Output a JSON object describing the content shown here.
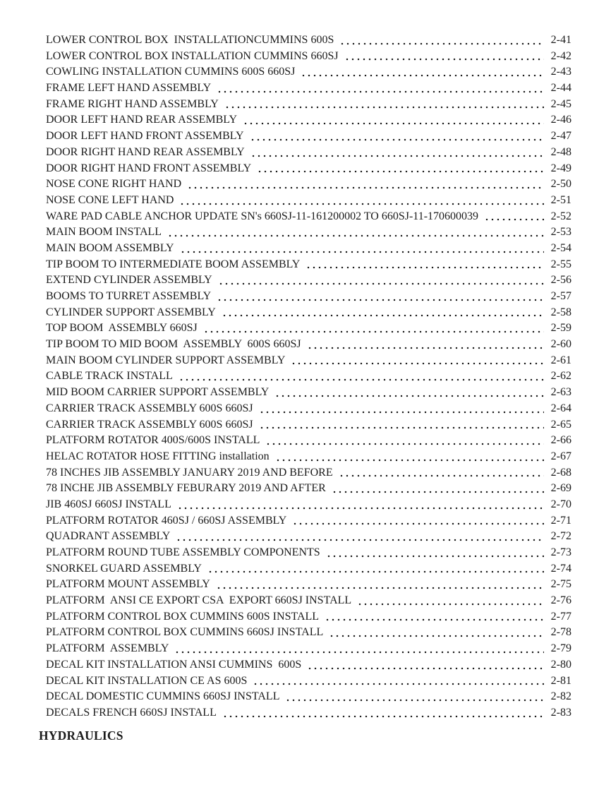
{
  "document": {
    "toc": {
      "entries": [
        {
          "title": "LOWER CONTROL BOX  INSTALLATIONCUMMINS 600S",
          "page": "2-41"
        },
        {
          "title": "LOWER CONTROL BOX INSTALLATION CUMMINS 660SJ",
          "page": "2-42"
        },
        {
          "title": "COWLING INSTALLATION CUMMINS 600S 660SJ",
          "page": "2-43"
        },
        {
          "title": "FRAME LEFT HAND ASSEMBLY",
          "page": "2-44"
        },
        {
          "title": "FRAME RIGHT HAND ASSEMBLY",
          "page": "2-45"
        },
        {
          "title": "DOOR LEFT HAND REAR ASSEMBLY",
          "page": "2-46"
        },
        {
          "title": "DOOR LEFT HAND FRONT ASSEMBLY",
          "page": "2-47"
        },
        {
          "title": "DOOR RIGHT HAND REAR ASSEMBLY",
          "page": "2-48"
        },
        {
          "title": "DOOR RIGHT HAND FRONT ASSEMBLY",
          "page": "2-49"
        },
        {
          "title": "NOSE CONE RIGHT HAND",
          "page": "2-50"
        },
        {
          "title": "NOSE CONE LEFT HAND",
          "page": "2-51"
        },
        {
          "title": "WARE PAD CABLE ANCHOR UPDATE SN's 660SJ-11-161200002 TO 660SJ-11-170600039",
          "page": "2-52"
        },
        {
          "title": "MAIN BOOM INSTALL",
          "page": "2-53"
        },
        {
          "title": "MAIN BOOM ASSEMBLY",
          "page": "2-54"
        },
        {
          "title": "TIP BOOM TO INTERMEDIATE BOOM ASSEMBLY",
          "page": "2-55"
        },
        {
          "title": "EXTEND CYLINDER ASSEMBLY",
          "page": "2-56"
        },
        {
          "title": "BOOMS TO TURRET ASSEMBLY",
          "page": "2-57"
        },
        {
          "title": "CYLINDER SUPPORT ASSEMBLY",
          "page": "2-58"
        },
        {
          "title": "TOP BOOM  ASSEMBLY 660SJ",
          "page": "2-59"
        },
        {
          "title": "TIP BOOM TO MID BOOM  ASSEMBLY  600S 660SJ",
          "page": "2-60"
        },
        {
          "title": "MAIN BOOM CYLINDER SUPPORT ASSEMBLY",
          "page": "2-61"
        },
        {
          "title": "CABLE TRACK INSTALL",
          "page": "2-62"
        },
        {
          "title": "MID BOOM CARRIER SUPPORT ASSEMBLY",
          "page": "2-63"
        },
        {
          "title": "CARRIER TRACK ASSEMBLY 600S 660SJ",
          "page": "2-64"
        },
        {
          "title": "CARRIER TRACK ASSEMBLY 600S 660SJ",
          "page": "2-65"
        },
        {
          "title": "PLATFORM ROTATOR 400S/600S INSTALL",
          "page": "2-66"
        },
        {
          "title": "HELAC ROTATOR HOSE FITTING installation",
          "page": "2-67"
        },
        {
          "title": "78 INCHES JIB ASSEMBLY JANUARY 2019 AND BEFORE",
          "page": "2-68"
        },
        {
          "title": "78 INCHE JIB ASSEMBLY FEBURARY 2019 AND AFTER",
          "page": "2-69"
        },
        {
          "title": "JIB 460SJ 660SJ INSTALL",
          "page": "2-70"
        },
        {
          "title": "PLATFORM ROTATOR 460SJ / 660SJ ASSEMBLY",
          "page": "2-71"
        },
        {
          "title": "QUADRANT ASSEMBLY",
          "page": "2-72"
        },
        {
          "title": "PLATFORM ROUND TUBE ASSEMBLY COMPONENTS",
          "page": "2-73"
        },
        {
          "title": "SNORKEL GUARD ASSEMBLY",
          "page": "2-74"
        },
        {
          "title": "PLATFORM MOUNT ASSEMBLY",
          "page": "2-75"
        },
        {
          "title": "PLATFORM  ANSI CE EXPORT CSA  EXPORT 660SJ INSTALL",
          "page": "2-76"
        },
        {
          "title": "PLATFORM CONTROL BOX CUMMINS 600S INSTALL",
          "page": "2-77"
        },
        {
          "title": "PLATFORM CONTROL BOX CUMMINS 660SJ INSTALL",
          "page": "2-78"
        },
        {
          "title": "PLATFORM  ASSEMBLY",
          "page": "2-79"
        },
        {
          "title": "DECAL KIT INSTALLATION ANSI CUMMINS  600S",
          "page": "2-80"
        },
        {
          "title": "DECAL KIT INSTALLATION CE AS 600S",
          "page": "2-81"
        },
        {
          "title": "DECAL DOMESTIC CUMMINS 660SJ INSTALL",
          "page": "2-82"
        },
        {
          "title": "DECALS FRENCH 660SJ INSTALL",
          "page": "2-83"
        }
      ]
    },
    "section_heading": "HYDRAULICS",
    "text_color": "#1b1b1b",
    "background_color": "#ffffff"
  }
}
